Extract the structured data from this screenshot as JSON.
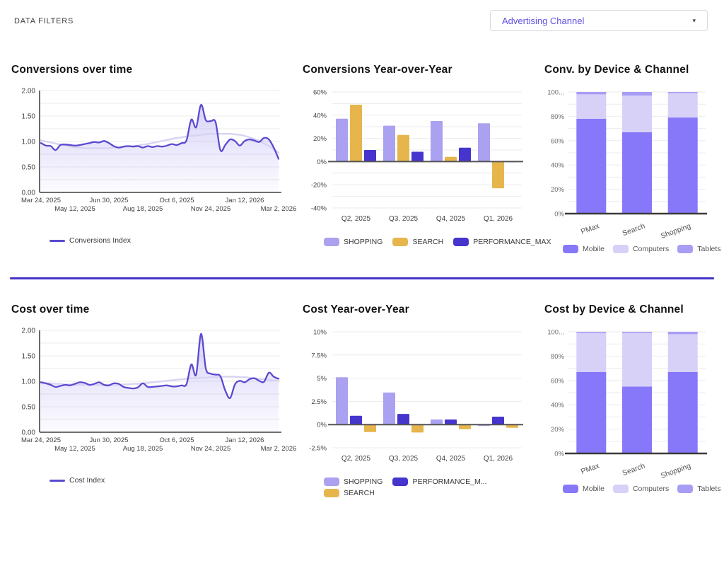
{
  "page": {
    "filters_label": "DATA FILTERS",
    "dropdown": {
      "value": "Advertising Channel",
      "caret": "▾"
    }
  },
  "colors": {
    "accent_divider": "#4433c8",
    "line": "#5a4ad0",
    "line_fill": "#7c6eeb",
    "trend": "#d8d3f3",
    "shopping": "#aaa1f0",
    "search": "#e6b54c",
    "performance_max": "#4635cc",
    "mobile": "#8678f8",
    "computers": "#d7d1f8",
    "tablets": "#a89df5",
    "grid": "#ebebeb",
    "axis_dark": "#5a5a5a",
    "tick_text": "#424242",
    "tick_text_soft": "#6a6a6a"
  },
  "chart_data": [
    {
      "type": "line",
      "title": "Conversions over time",
      "ylim": [
        0,
        2
      ],
      "y_ticks": [
        {
          "v": 0,
          "label": "0.00"
        },
        {
          "v": 0.5,
          "label": "0.50"
        },
        {
          "v": 1,
          "label": "1.00"
        },
        {
          "v": 1.5,
          "label": "1.50"
        },
        {
          "v": 2,
          "label": "2.00"
        }
      ],
      "grid_step": 0.25,
      "x_ticks_row1": [
        {
          "i": 0,
          "label": "Mar 24, 2025"
        },
        {
          "i": 14,
          "label": "Jun 30, 2025"
        },
        {
          "i": 28,
          "label": "Oct 6, 2025"
        },
        {
          "i": 42,
          "label": "Jan 12, 2026"
        }
      ],
      "x_ticks_row2": [
        {
          "i": 7,
          "label": "May 12, 2025"
        },
        {
          "i": 21,
          "label": "Aug 18, 2025"
        },
        {
          "i": 35,
          "label": "Nov 24, 2025"
        },
        {
          "i": 49,
          "label": "Mar 2, 2026"
        }
      ],
      "series": [
        {
          "name": "Conversions Index",
          "color": "line",
          "values": [
            0.97,
            0.92,
            0.91,
            0.83,
            0.93,
            0.94,
            0.93,
            0.92,
            0.93,
            0.95,
            0.97,
            0.99,
            0.98,
            1.01,
            0.97,
            0.91,
            0.88,
            0.9,
            0.91,
            0.9,
            0.91,
            0.88,
            0.91,
            0.89,
            0.91,
            0.9,
            0.92,
            0.95,
            0.93,
            0.97,
            1.02,
            1.43,
            1.28,
            1.72,
            1.42,
            1.4,
            1.38,
            0.83,
            0.93,
            1.04,
            1.01,
            0.92,
            1.01,
            1.04,
            1.02,
            0.99,
            1.07,
            1.04,
            0.88,
            0.66
          ]
        },
        {
          "name": "trend",
          "color": "trend",
          "values": [
            1.02,
            1.0,
            0.98,
            0.96,
            0.94,
            0.92,
            0.9,
            0.89,
            0.88,
            0.87,
            0.87,
            0.87,
            0.87,
            0.87,
            0.87,
            0.88,
            0.88,
            0.89,
            0.9,
            0.91,
            0.92,
            0.94,
            0.95,
            0.97,
            0.99,
            1.01,
            1.03,
            1.05,
            1.07,
            1.08,
            1.1,
            1.11,
            1.12,
            1.13,
            1.14,
            1.15,
            1.15,
            1.15,
            1.15,
            1.15,
            1.14,
            1.13,
            1.11,
            1.08,
            1.05,
            1.01,
            0.96,
            0.91,
            0.85,
            0.78
          ]
        }
      ],
      "legend": [
        {
          "label": "Conversions Index",
          "color": "line",
          "swatch": "line"
        }
      ],
      "legend_class": "line-legend"
    },
    {
      "type": "bar",
      "title": "Conversions Year-over-Year",
      "categories": [
        "Q2, 2025",
        "Q3, 2025",
        "Q4, 2025",
        "Q1, 2026"
      ],
      "ylim": [
        -40,
        60
      ],
      "grid_step": 10,
      "y_ticks": [
        {
          "v": -40,
          "label": "-40%"
        },
        {
          "v": -20,
          "label": "-20%"
        },
        {
          "v": 0,
          "label": "0%"
        },
        {
          "v": 20,
          "label": "20%"
        },
        {
          "v": 40,
          "label": "40%"
        },
        {
          "v": 60,
          "label": "60%"
        }
      ],
      "series": [
        {
          "name": "SHOPPING",
          "color": "shopping",
          "values": [
            37,
            31,
            35,
            33
          ]
        },
        {
          "name": "SEARCH",
          "color": "search",
          "values": [
            49,
            23,
            4,
            -23
          ]
        },
        {
          "name": "PERFORMANCE_MAX",
          "color": "performance_max",
          "values": [
            10,
            8.5,
            12,
            -0.5
          ]
        }
      ],
      "legend": [
        {
          "label": "SHOPPING",
          "color": "shopping",
          "swatch": "box"
        },
        {
          "label": "SEARCH",
          "color": "search",
          "swatch": "box"
        },
        {
          "label": "PERFORMANCE_MAX",
          "color": "performance_max",
          "swatch": "box"
        }
      ],
      "legend_class": "col2-legend"
    },
    {
      "type": "stacked_bar",
      "title": "Conv. by Device & Channel",
      "categories": [
        "PMax",
        "Search",
        "Shopping"
      ],
      "ylim": [
        0,
        100
      ],
      "grid_step": 10,
      "y_ticks": [
        {
          "v": 0,
          "label": "0%"
        },
        {
          "v": 20,
          "label": "20%"
        },
        {
          "v": 40,
          "label": "40%"
        },
        {
          "v": 60,
          "label": "60%"
        },
        {
          "v": 80,
          "label": "80%"
        },
        {
          "v": 100,
          "label": "100..."
        }
      ],
      "series": [
        {
          "name": "Mobile",
          "color": "mobile",
          "values": [
            78,
            67,
            79
          ]
        },
        {
          "name": "Computers",
          "color": "computers",
          "values": [
            20,
            30,
            20
          ]
        },
        {
          "name": "Tablets",
          "color": "tablets",
          "values": [
            2,
            3,
            1
          ]
        }
      ],
      "legend": [
        {
          "label": "Mobile",
          "color": "mobile",
          "swatch": "box"
        },
        {
          "label": "Computers",
          "color": "computers",
          "swatch": "box"
        },
        {
          "label": "Tablets",
          "color": "tablets",
          "swatch": "box"
        }
      ],
      "legend_class": "col3-legend"
    },
    {
      "type": "line",
      "title": "Cost over time",
      "ylim": [
        0,
        2
      ],
      "y_ticks": [
        {
          "v": 0,
          "label": "0.00"
        },
        {
          "v": 0.5,
          "label": "0.50"
        },
        {
          "v": 1,
          "label": "1.00"
        },
        {
          "v": 1.5,
          "label": "1.50"
        },
        {
          "v": 2,
          "label": "2.00"
        }
      ],
      "grid_step": 0.25,
      "x_ticks_row1": [
        {
          "i": 0,
          "label": "Mar 24, 2025"
        },
        {
          "i": 14,
          "label": "Jun 30, 2025"
        },
        {
          "i": 28,
          "label": "Oct 6, 2025"
        },
        {
          "i": 42,
          "label": "Jan 12, 2026"
        }
      ],
      "x_ticks_row2": [
        {
          "i": 7,
          "label": "May 12, 2025"
        },
        {
          "i": 21,
          "label": "Aug 18, 2025"
        },
        {
          "i": 35,
          "label": "Nov 24, 2025"
        },
        {
          "i": 49,
          "label": "Mar 2, 2026"
        }
      ],
      "series": [
        {
          "name": "Cost Index",
          "color": "line",
          "values": [
            0.98,
            0.96,
            0.93,
            0.89,
            0.91,
            0.93,
            0.92,
            0.95,
            0.98,
            0.97,
            0.93,
            0.95,
            0.98,
            0.93,
            0.92,
            0.96,
            0.95,
            0.89,
            0.87,
            0.86,
            0.88,
            0.96,
            0.89,
            0.89,
            0.9,
            0.91,
            0.92,
            0.9,
            0.9,
            0.92,
            0.94,
            1.33,
            1.13,
            1.93,
            1.25,
            1.15,
            1.13,
            1.1,
            0.82,
            0.67,
            0.94,
            1.01,
            0.98,
            1.04,
            1.06,
            1.01,
            0.99,
            1.17,
            1.09,
            1.05
          ]
        },
        {
          "name": "trend",
          "color": "trend",
          "values": [
            0.97,
            0.96,
            0.96,
            0.95,
            0.95,
            0.94,
            0.94,
            0.93,
            0.93,
            0.93,
            0.93,
            0.93,
            0.93,
            0.93,
            0.93,
            0.93,
            0.93,
            0.94,
            0.94,
            0.95,
            0.95,
            0.96,
            0.97,
            0.98,
            0.99,
            1.0,
            1.01,
            1.02,
            1.03,
            1.04,
            1.05,
            1.06,
            1.06,
            1.07,
            1.07,
            1.08,
            1.08,
            1.08,
            1.09,
            1.09,
            1.09,
            1.08,
            1.08,
            1.07,
            1.06,
            1.05,
            1.04,
            1.03,
            1.02,
            1.01
          ]
        }
      ],
      "legend": [
        {
          "label": "Cost Index",
          "color": "line",
          "swatch": "line"
        }
      ],
      "legend_class": "line-legend"
    },
    {
      "type": "bar",
      "title": "Cost Year-over-Year",
      "categories": [
        "Q2, 2025",
        "Q3, 2025",
        "Q4, 2025",
        "Q1, 2026"
      ],
      "ylim": [
        -2.5,
        10
      ],
      "grid_step": 2.5,
      "y_ticks": [
        {
          "v": -2.5,
          "label": "-2.5%"
        },
        {
          "v": 0,
          "label": "0%"
        },
        {
          "v": 2.5,
          "label": "2.5%"
        },
        {
          "v": 5,
          "label": "5%"
        },
        {
          "v": 7.5,
          "label": "7.5%"
        },
        {
          "v": 10,
          "label": "10%"
        }
      ],
      "series": [
        {
          "name": "SHOPPING",
          "color": "shopping",
          "values": [
            5.1,
            3.45,
            0.55,
            -0.15
          ]
        },
        {
          "name": "PERFORMANCE_MAX",
          "color": "performance_max",
          "values": [
            0.95,
            1.15,
            0.55,
            0.85
          ]
        },
        {
          "name": "SEARCH",
          "color": "search",
          "values": [
            -0.8,
            -0.85,
            -0.5,
            -0.35
          ]
        }
      ],
      "legend": [
        {
          "label": "SHOPPING",
          "color": "shopping",
          "swatch": "box"
        },
        {
          "label": "PERFORMANCE_M...",
          "color": "performance_max",
          "swatch": "box"
        },
        {
          "label": "SEARCH",
          "color": "search",
          "swatch": "box"
        }
      ],
      "legend_class": "col2-legend wrap"
    },
    {
      "type": "stacked_bar",
      "title": "Cost by Device & Channel",
      "categories": [
        "PMax",
        "Search",
        "Shopping"
      ],
      "ylim": [
        0,
        100
      ],
      "grid_step": 10,
      "y_ticks": [
        {
          "v": 0,
          "label": "0%"
        },
        {
          "v": 20,
          "label": "20%"
        },
        {
          "v": 40,
          "label": "40%"
        },
        {
          "v": 60,
          "label": "60%"
        },
        {
          "v": 80,
          "label": "80%"
        },
        {
          "v": 100,
          "label": "100..."
        }
      ],
      "series": [
        {
          "name": "Mobile",
          "color": "mobile",
          "values": [
            67,
            55,
            67
          ]
        },
        {
          "name": "Computers",
          "color": "computers",
          "values": [
            32,
            44,
            31
          ]
        },
        {
          "name": "Tablets",
          "color": "tablets",
          "values": [
            1,
            1,
            2
          ]
        }
      ],
      "legend": [
        {
          "label": "Mobile",
          "color": "mobile",
          "swatch": "box"
        },
        {
          "label": "Computers",
          "color": "computers",
          "swatch": "box"
        },
        {
          "label": "Tablets",
          "color": "tablets",
          "swatch": "box"
        }
      ],
      "legend_class": "col3-legend"
    }
  ]
}
